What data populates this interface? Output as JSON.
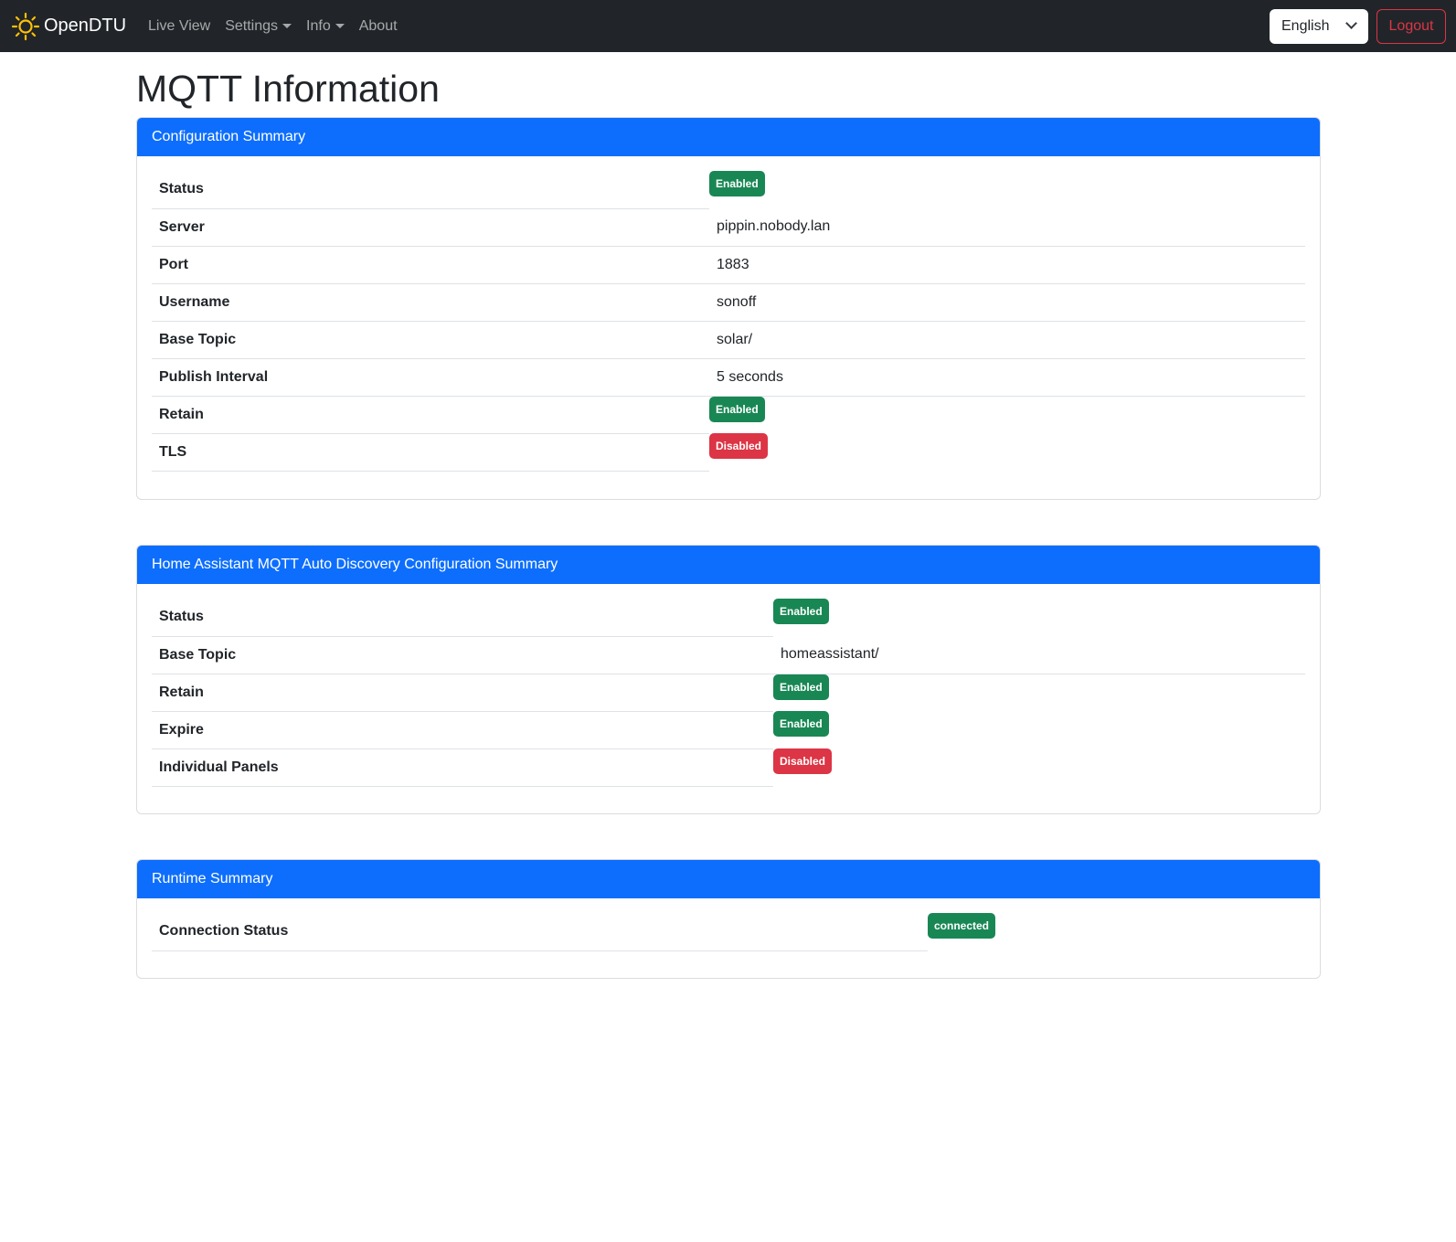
{
  "navbar": {
    "brand": "OpenDTU",
    "links": [
      "Live View",
      "Settings",
      "Info",
      "About"
    ],
    "language": "English",
    "logout": "Logout"
  },
  "page_title": "MQTT Information",
  "colors": {
    "primary": "#0d6efd",
    "success": "#198754",
    "danger": "#dc3545",
    "navbar": "#212529"
  },
  "config": {
    "title": "Configuration Summary",
    "rows": [
      {
        "label": "Status",
        "badge": "Enabled",
        "state": "ok"
      },
      {
        "label": "Server",
        "value": "pippin.nobody.lan"
      },
      {
        "label": "Port",
        "value": "1883"
      },
      {
        "label": "Username",
        "value": "sonoff"
      },
      {
        "label": "Base Topic",
        "value": "solar/"
      },
      {
        "label": "Publish Interval",
        "value": "5 seconds"
      },
      {
        "label": "Retain",
        "badge": "Enabled",
        "state": "ok"
      },
      {
        "label": "TLS",
        "badge": "Disabled",
        "state": "bad"
      }
    ]
  },
  "ha": {
    "title": "Home Assistant MQTT Auto Discovery Configuration Summary",
    "rows": [
      {
        "label": "Status",
        "badge": "Enabled",
        "state": "ok"
      },
      {
        "label": "Base Topic",
        "value": "homeassistant/"
      },
      {
        "label": "Retain",
        "badge": "Enabled",
        "state": "ok"
      },
      {
        "label": "Expire",
        "badge": "Enabled",
        "state": "ok"
      },
      {
        "label": "Individual Panels",
        "badge": "Disabled",
        "state": "bad"
      }
    ]
  },
  "runtime": {
    "title": "Runtime Summary",
    "rows": [
      {
        "label": "Connection Status",
        "badge": "connected",
        "state": "ok"
      }
    ]
  }
}
